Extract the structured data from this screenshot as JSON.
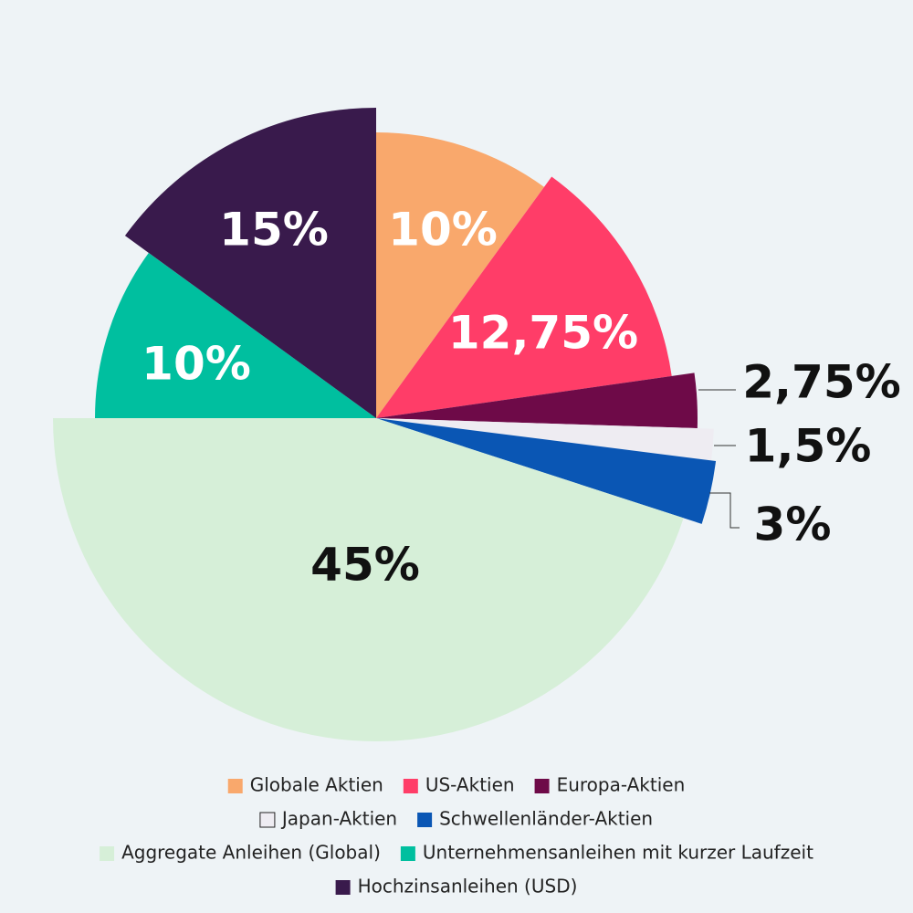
{
  "chart_data": {
    "type": "pie",
    "categories": [
      "Globale Aktien",
      "US-Aktien",
      "Europa-Aktien",
      "Japan-Aktien",
      "Schwellenländer-Aktien",
      "Aggregate Anleihen (Global)",
      "Unternehmensanleihen mit kurzer Laufzeit",
      "Hochzinsanleihen (USD)"
    ],
    "values": [
      10,
      12.75,
      2.75,
      1.5,
      3,
      45,
      10,
      15
    ],
    "value_labels": [
      "10%",
      "12,75%",
      "2,75%",
      "1,5%",
      "3%",
      "45%",
      "10%",
      "15%"
    ],
    "colors": [
      "#f9a86c",
      "#ff3d68",
      "#6e0a48",
      "#eeecf2",
      "#0a56b4",
      "#d6efd8",
      "#00bf9f",
      "#391a4c"
    ]
  }
}
